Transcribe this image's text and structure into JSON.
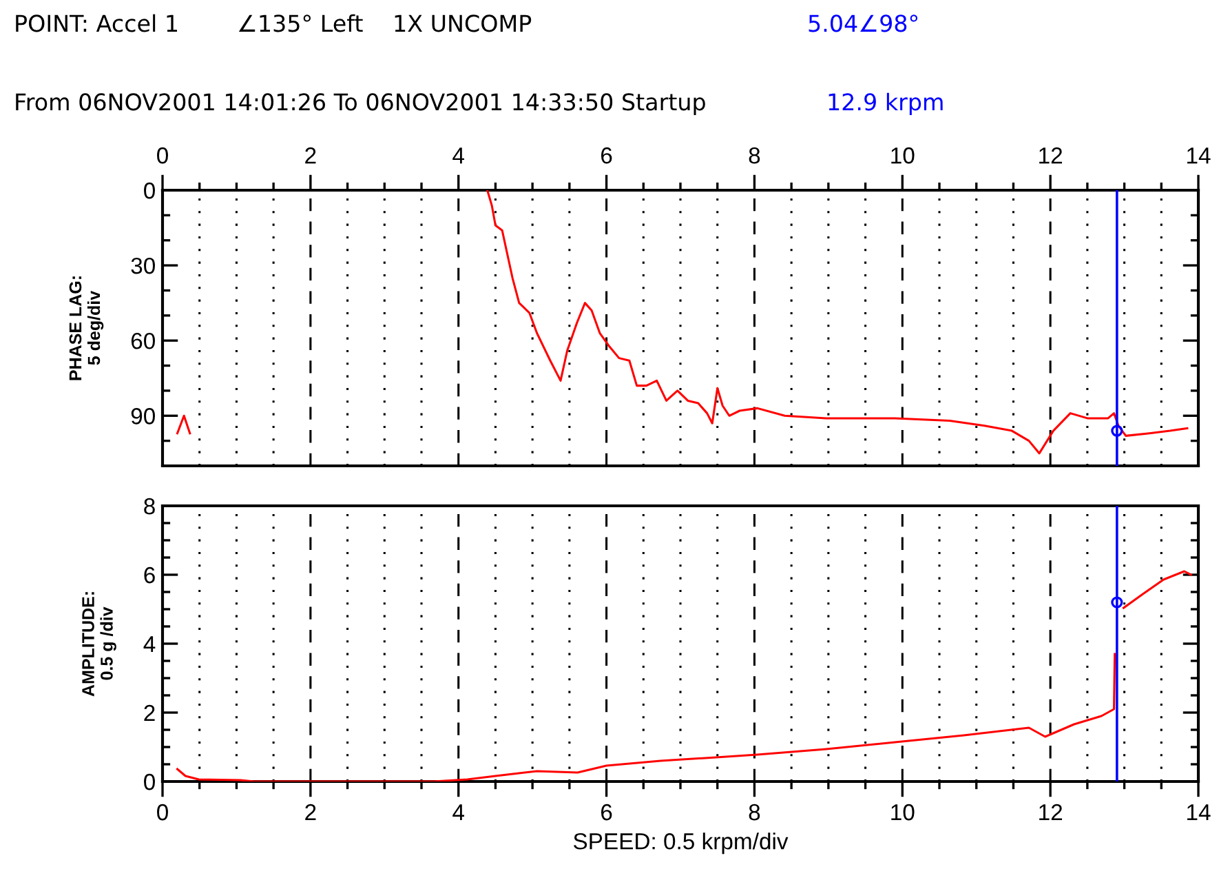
{
  "chart_data": [
    {
      "type": "line",
      "annotations": [
        "POINT: Accel 1",
        "∠135° Left",
        "1X UNCOMP",
        "5.04∠98°",
        "From 06NOV2001 14:01:26 To 06NOV2001 14:33:50 Startup",
        "12.9 krpm"
      ],
      "ylabel": "PHASE LAG:\n5 deg/div",
      "xlim": [
        0,
        14
      ],
      "xticks": [
        0,
        2,
        4,
        6,
        8,
        10,
        12,
        14
      ],
      "ylim": [
        110,
        0
      ],
      "yticks": [
        0,
        30,
        60,
        90
      ],
      "grid": "x",
      "ref_lines": [
        {
          "axis": "x",
          "value": 12.9,
          "color": "#0000ff"
        }
      ],
      "series": [
        {
          "color": "#ff0000",
          "x": [
            0.2,
            0.29,
            0.37
          ],
          "values": [
            97,
            90,
            97
          ]
        },
        {
          "color": "#ff0000",
          "x": [
            4.39,
            4.45,
            4.5,
            4.59,
            4.73,
            4.82,
            4.96,
            5.06,
            5.24,
            5.38,
            5.47,
            5.6,
            5.71,
            5.8,
            5.91,
            6.03,
            6.17,
            6.31,
            6.41,
            6.54,
            6.68,
            6.81,
            6.96,
            7.1,
            7.24,
            7.36,
            7.43,
            7.5,
            7.57,
            7.66,
            7.8,
            8.04,
            8.41,
            8.97,
            9.9,
            10.64,
            11.11,
            11.48,
            11.71,
            11.85,
            12.04,
            12.27,
            12.5,
            12.78,
            12.86,
            12.92,
            13.02,
            13.34,
            13.62,
            13.85
          ],
          "values": [
            0,
            6,
            14,
            16,
            35,
            45,
            49,
            57,
            68,
            76,
            64,
            53,
            45,
            48,
            57,
            62,
            67,
            68,
            78,
            78,
            76,
            84,
            80,
            84,
            85,
            89,
            93,
            79,
            86,
            90,
            88,
            87,
            90,
            91,
            91,
            92,
            94,
            96,
            100,
            105,
            96,
            89,
            91,
            91,
            89,
            94,
            98,
            97,
            96,
            95
          ]
        },
        {
          "type": "scatter",
          "color": "#0000ff",
          "marker": "circle",
          "x": [
            12.9
          ],
          "values": [
            96
          ]
        }
      ]
    },
    {
      "type": "line",
      "ylabel": "AMPLITUDE:\n0.5 g /div",
      "xlabel": "SPEED: 0.5 krpm/div",
      "xlim": [
        0,
        14
      ],
      "xticks": [
        0,
        2,
        4,
        6,
        8,
        10,
        12,
        14
      ],
      "ylim": [
        0,
        8
      ],
      "yticks": [
        0,
        2,
        4,
        6,
        8
      ],
      "grid": "x",
      "ref_lines": [
        {
          "axis": "x",
          "value": 12.9,
          "color": "#0000ff"
        }
      ],
      "series": [
        {
          "color": "#ff0000",
          "x": [
            0.2,
            0.31,
            0.49,
            1.05,
            1.24,
            3.66,
            4.12,
            4.5,
            5.06,
            5.61,
            6.0,
            6.73,
            7.48,
            8.04,
            8.97,
            9.9,
            10.83,
            11.71,
            11.93,
            12.32,
            12.69,
            12.86,
            12.87,
            null,
            12.99,
            13.25,
            13.53,
            13.81,
            13.9
          ],
          "values": [
            0.36,
            0.16,
            0.06,
            0.04,
            0,
            0,
            0.06,
            0.16,
            0.3,
            0.26,
            0.46,
            0.6,
            0.7,
            0.78,
            0.94,
            1.14,
            1.34,
            1.56,
            1.3,
            1.66,
            1.9,
            2.1,
            3.7,
            null,
            5.04,
            5.44,
            5.86,
            6.1,
            6.0
          ]
        },
        {
          "type": "scatter",
          "color": "#0000ff",
          "marker": "circle",
          "x": [
            12.9
          ],
          "values": [
            5.2
          ]
        }
      ]
    }
  ]
}
